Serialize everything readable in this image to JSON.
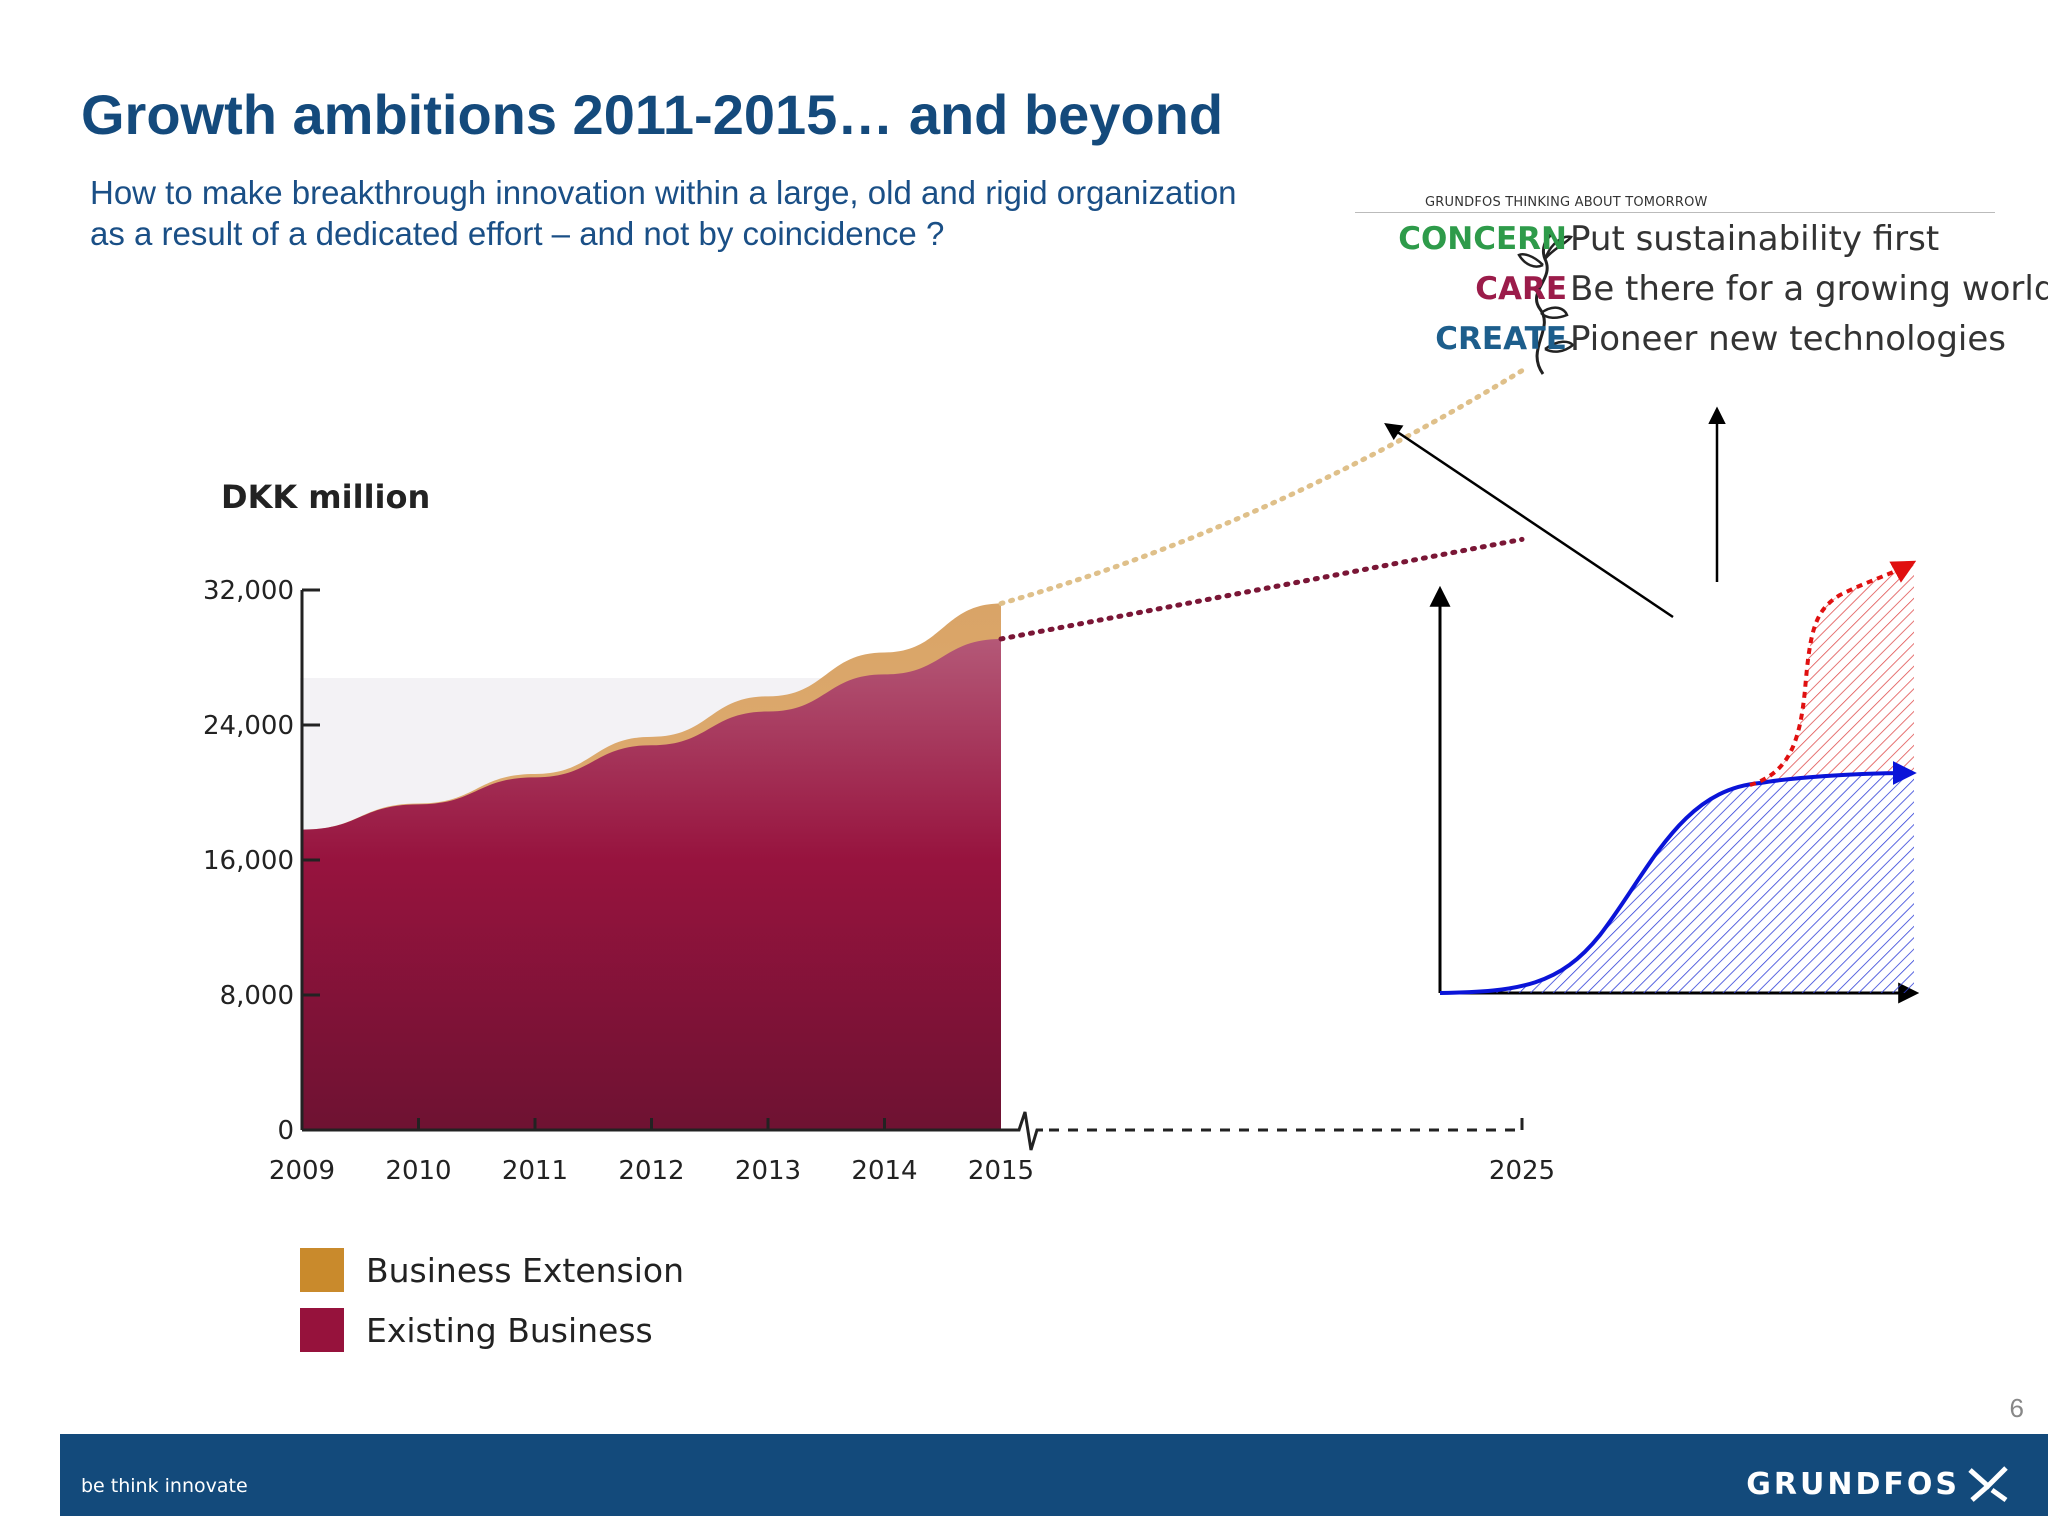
{
  "slide": {
    "title": "Growth ambitions 2011-2015… and beyond",
    "subtitle_lines": [
      "How to make breakthrough innovation within a large, old and rigid organization",
      "as a result of a dedicated effort – and not by coincidence ?"
    ],
    "page_number": "6"
  },
  "tagline": {
    "header": "GRUNDFOS THINKING ABOUT TOMORROW",
    "rows": [
      {
        "word": "CONCERN",
        "text": "Put sustainability first",
        "color": "#2e9b4a"
      },
      {
        "word": "CARE",
        "text": "Be there for a growing world",
        "color": "#9b1c4a"
      },
      {
        "word": "CREATE",
        "text": "Pioneer new technologies",
        "color": "#1d5e8c"
      }
    ]
  },
  "footer": {
    "slogan": "be think innovate",
    "brand": "GRUNDFOS"
  },
  "chart_data": [
    {
      "type": "area",
      "ylabel": "DKK million",
      "x": [
        "2009",
        "2010",
        "2011",
        "2012",
        "2013",
        "2014",
        "2015"
      ],
      "x_extra_tick": "2025",
      "y_ticks": [
        "0",
        "8,000",
        "16,000",
        "24,000",
        "32,000"
      ],
      "ylim": [
        0,
        32000
      ],
      "series": [
        {
          "name": "Existing Business",
          "color": "#96123c",
          "values": [
            17800,
            19300,
            20900,
            22800,
            24800,
            27000,
            29100
          ]
        },
        {
          "name": "Business Extension",
          "color": "#c98a2c",
          "values": [
            0,
            50,
            200,
            500,
            900,
            1300,
            2100
          ]
        }
      ],
      "projection": {
        "existing_2025_end": 35000,
        "extension_2025_end": 45000
      },
      "legend": "bottom-left"
    },
    {
      "type": "line",
      "description_series": [
        {
          "name": "",
          "color": "#0a14d8",
          "shape": "s-curve"
        },
        {
          "name": "",
          "color": "#e01010",
          "shape": "second s-curve, dotted"
        }
      ]
    }
  ]
}
